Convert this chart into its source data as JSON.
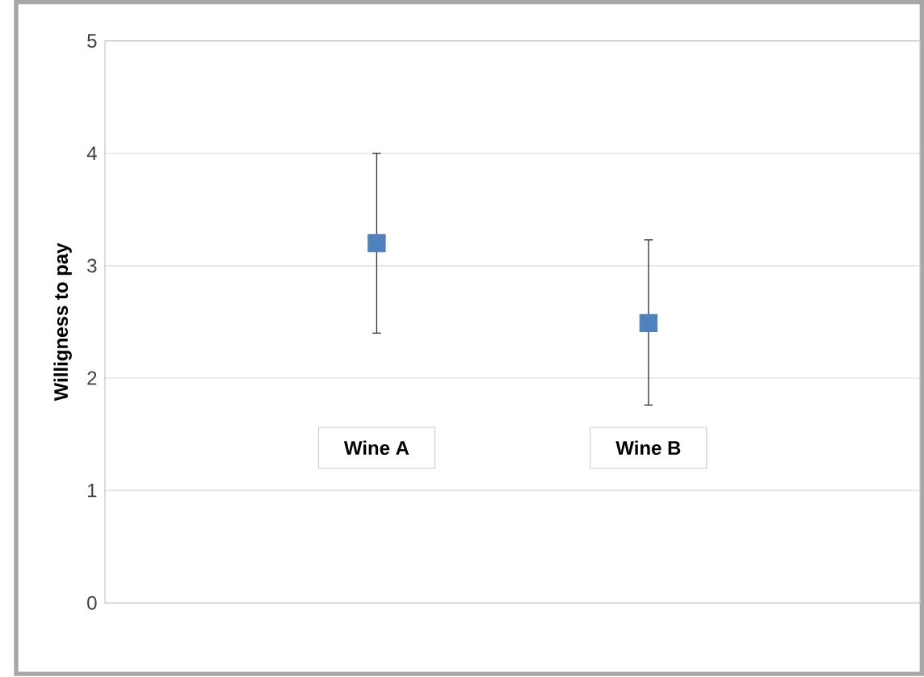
{
  "chart_data": {
    "type": "scatter",
    "ylabel": "Willigness to pay",
    "categories": [
      "Wine A",
      "Wine B"
    ],
    "values": [
      3.2,
      2.49
    ],
    "errors": [
      [
        2.4,
        4.0
      ],
      [
        1.76,
        3.23
      ]
    ],
    "color": "#4f81bd",
    "marker": "square",
    "ylim": [
      0,
      5
    ],
    "yticks": [
      0,
      1,
      2,
      3,
      4,
      5
    ],
    "grid": "y"
  }
}
